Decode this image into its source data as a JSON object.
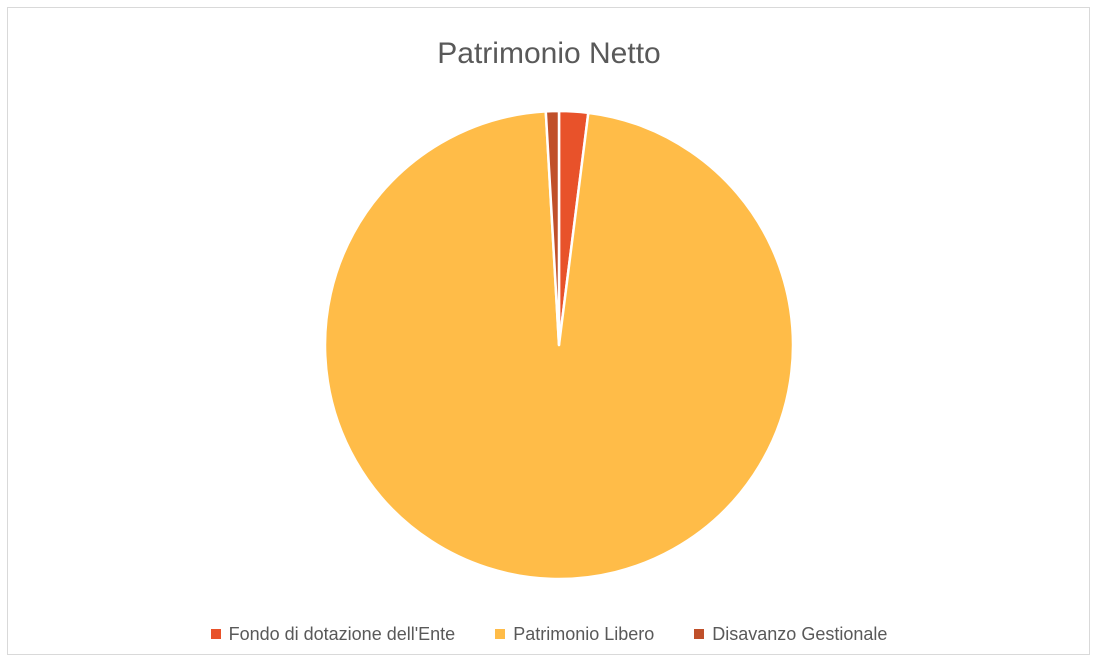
{
  "chart_data": {
    "type": "pie",
    "title": "Patrimonio Netto",
    "categories": [
      "Fondo di dotazione dell'Ente",
      "Patrimonio Libero",
      "Disavanzo Gestionale"
    ],
    "values": [
      2.0,
      97.1,
      0.9
    ],
    "colors": [
      "#e8522a",
      "#ffbc48",
      "#c0502a"
    ],
    "legend_position": "bottom",
    "slice_border_color": "#ffffff"
  }
}
